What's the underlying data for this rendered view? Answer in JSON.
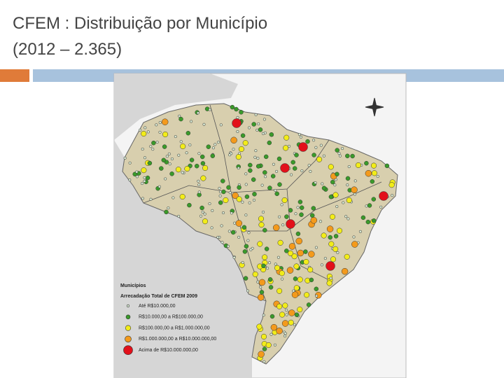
{
  "slide": {
    "title_lines": [
      "CFEM : Distribuição por Município",
      "(2012 – 2.365)"
    ],
    "map": {
      "legend": {
        "title": "Municípios",
        "subtitle": "Arrecadação Total de CFEM 2009",
        "items": [
          {
            "label": "Até R$10.000,00",
            "color": "#d9ead3"
          },
          {
            "label": "R$10.000,00 a R$100.000,00",
            "color": "#3a9a2a"
          },
          {
            "label": "R$100.000,00 a R$1.000.000,00",
            "color": "#f2ec1a"
          },
          {
            "label": "R$1.000.000,00 a R$10.000.000,00",
            "color": "#f39a1c"
          },
          {
            "label": "Acima de R$10.000.000,00",
            "color": "#e2101a"
          }
        ]
      }
    }
  }
}
